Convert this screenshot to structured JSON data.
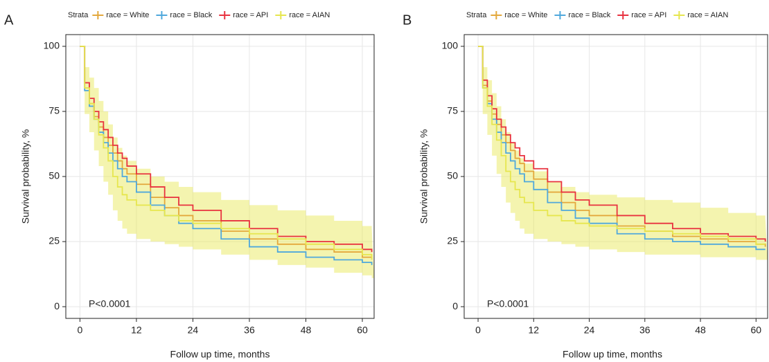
{
  "chart_data": [
    {
      "type": "step",
      "panel_label": "A",
      "legend_title": "Strata",
      "x_label": "Follow up time, months",
      "y_label": "Survival probability, %",
      "annotation": "P<0.0001",
      "x": [
        0,
        1,
        2,
        3,
        4,
        5,
        6,
        7,
        8,
        9,
        10,
        12,
        15,
        18,
        21,
        24,
        30,
        36,
        42,
        48,
        54,
        60,
        62
      ],
      "xlim": [
        -3,
        62.5
      ],
      "ylim": [
        -4.5,
        104.5
      ],
      "xticks": [
        0,
        12,
        24,
        36,
        48,
        60
      ],
      "yticks": [
        0,
        25,
        50,
        75,
        100
      ],
      "grid": true,
      "series": [
        {
          "name": "race = White",
          "color": "#e3a83c",
          "values": [
            100,
            84,
            78,
            73,
            69,
            65,
            62,
            59,
            56,
            53,
            51,
            47,
            42,
            38,
            35,
            33,
            29,
            26,
            24,
            22,
            21,
            19,
            19
          ]
        },
        {
          "name": "race = Black",
          "color": "#4fa8dc",
          "values": [
            100,
            83,
            77,
            72,
            67,
            63,
            59,
            56,
            53,
            50,
            48,
            44,
            39,
            35,
            32,
            30,
            26,
            23,
            21,
            19,
            18,
            17,
            16
          ]
        },
        {
          "name": "race = API",
          "color": "#e8323f",
          "values": [
            100,
            86,
            80,
            75,
            71,
            68,
            65,
            62,
            59,
            57,
            54,
            51,
            46,
            42,
            39,
            37,
            33,
            30,
            27,
            25,
            24,
            22,
            21
          ]
        },
        {
          "name": "race = AIAN",
          "color": "#e6e64e",
          "values": [
            100,
            84,
            78,
            72,
            66,
            61,
            56,
            50,
            46,
            43,
            41,
            39,
            37,
            35,
            33,
            32,
            30,
            28,
            26,
            24,
            22,
            20,
            18
          ],
          "upper": [
            100,
            92,
            88,
            84,
            79,
            75,
            70,
            65,
            61,
            58,
            56,
            53,
            50,
            48,
            46,
            44,
            41,
            39,
            37,
            35,
            33,
            31,
            30
          ],
          "lower": [
            100,
            74,
            67,
            60,
            54,
            48,
            43,
            37,
            33,
            30,
            28,
            26,
            25,
            24,
            23,
            22,
            20,
            18,
            16,
            15,
            13,
            12,
            11
          ]
        }
      ]
    },
    {
      "type": "step",
      "panel_label": "B",
      "legend_title": "Strata",
      "x_label": "Follow up time, months",
      "y_label": "Survival probability, %",
      "annotation": "P<0.0001",
      "x": [
        0,
        1,
        2,
        3,
        4,
        5,
        6,
        7,
        8,
        9,
        10,
        12,
        15,
        18,
        21,
        24,
        30,
        36,
        42,
        48,
        54,
        60,
        62
      ],
      "xlim": [
        -3,
        62.5
      ],
      "ylim": [
        -4.5,
        104.5
      ],
      "xticks": [
        0,
        12,
        24,
        36,
        48,
        60
      ],
      "yticks": [
        0,
        25,
        50,
        75,
        100
      ],
      "grid": true,
      "series": [
        {
          "name": "race = White",
          "color": "#e3a83c",
          "values": [
            100,
            85,
            79,
            74,
            70,
            66,
            63,
            60,
            57,
            55,
            52,
            49,
            44,
            40,
            37,
            35,
            31,
            29,
            27,
            26,
            25,
            24,
            23
          ]
        },
        {
          "name": "race = Black",
          "color": "#4fa8dc",
          "values": [
            100,
            84,
            78,
            72,
            67,
            63,
            59,
            56,
            53,
            51,
            48,
            45,
            40,
            37,
            34,
            32,
            28,
            26,
            25,
            24,
            23,
            22,
            22
          ]
        },
        {
          "name": "race = API",
          "color": "#e8323f",
          "values": [
            100,
            87,
            81,
            76,
            72,
            69,
            66,
            63,
            61,
            58,
            56,
            53,
            48,
            44,
            41,
            39,
            35,
            32,
            30,
            28,
            27,
            26,
            25
          ]
        },
        {
          "name": "race = AIAN",
          "color": "#e6e64e",
          "values": [
            100,
            84,
            77,
            70,
            64,
            58,
            52,
            48,
            45,
            42,
            40,
            37,
            35,
            33,
            32,
            31,
            30,
            29,
            28,
            27,
            26,
            24,
            24
          ],
          "upper": [
            100,
            92,
            87,
            82,
            77,
            72,
            67,
            63,
            60,
            57,
            55,
            52,
            48,
            46,
            44,
            43,
            42,
            41,
            40,
            38,
            36,
            35,
            34
          ],
          "lower": [
            100,
            74,
            66,
            58,
            51,
            46,
            40,
            36,
            33,
            30,
            28,
            26,
            25,
            24,
            23,
            22,
            21,
            20,
            20,
            19,
            19,
            18,
            18
          ]
        }
      ]
    }
  ]
}
